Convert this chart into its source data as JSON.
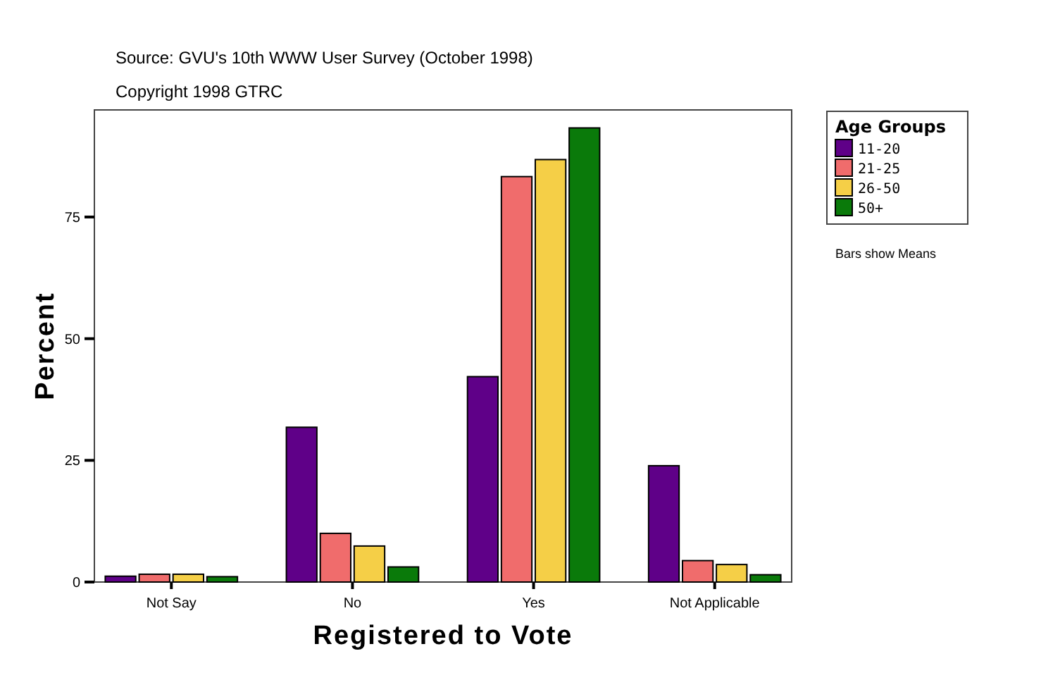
{
  "chart_data": {
    "type": "bar",
    "title": "Source: GVU's 10th WWW User Survey (October 1998)",
    "subtitle": "Copyright 1998 GTRC",
    "xlabel": "Registered to Vote",
    "ylabel": "Percent",
    "legend_title": "Age Groups",
    "legend": "top right",
    "annotations": [
      "Bars show Means"
    ],
    "categories": [
      "Not Say",
      "No",
      "Yes",
      "Not Applicable"
    ],
    "ylim": [
      0,
      97
    ],
    "yticks": [
      0,
      25,
      50,
      75
    ],
    "series": [
      {
        "name": "11-20",
        "color": "#5f0088",
        "values": [
          1.2,
          31.8,
          42.2,
          23.9
        ]
      },
      {
        "name": "21-25",
        "color": "#f06c6c",
        "values": [
          1.6,
          10.0,
          83.3,
          4.4
        ]
      },
      {
        "name": "26-50",
        "color": "#f5cf47",
        "values": [
          1.6,
          7.4,
          86.8,
          3.6
        ]
      },
      {
        "name": "50+",
        "color": "#0a7a0a",
        "values": [
          1.1,
          3.1,
          93.3,
          1.5
        ]
      }
    ]
  }
}
